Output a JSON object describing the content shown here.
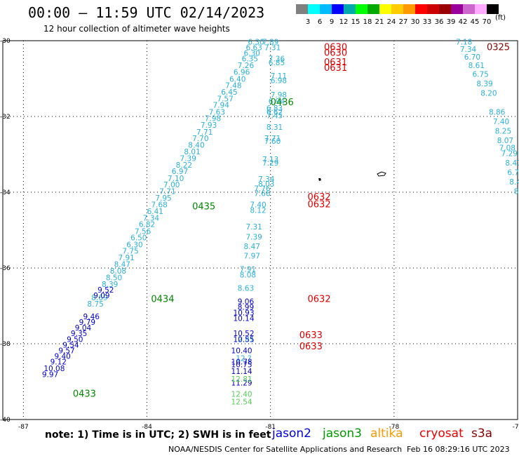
{
  "title": "00:00 – 11:59 UTC 02/14/2023",
  "subtitle": "12 hour collection of altimeter wave heights",
  "note": "note:  1) Time is in UTC;  2) SWH is in feet",
  "credit": "NOAA/NESDIS Center for Satellite Applications and Research",
  "timestamp": "Feb 16 08:29:16 UTC 2023",
  "satellites": [
    {
      "label": "jason2",
      "color": "#0000dd"
    },
    {
      "label": "jason3",
      "color": "#009900"
    },
    {
      "label": "altika",
      "color": "#ff9900"
    },
    {
      "label": "cryosat",
      "color": "#ee0000"
    },
    {
      "label": "s3a",
      "color": "#880000"
    }
  ],
  "scale": {
    "colors": [
      "#808080",
      "#00ffff",
      "#00bbff",
      "#0000ff",
      "#00aaaa",
      "#00ff00",
      "#00aa00",
      "#ffff00",
      "#ffcc00",
      "#ff9900",
      "#ff0000",
      "#cc0000",
      "#990000",
      "#990099",
      "#cc66cc",
      "#ffaaff",
      "#000000"
    ],
    "ticks": [
      "3",
      "6",
      "9",
      "12",
      "15",
      "18",
      "21",
      "24",
      "27",
      "30",
      "33",
      "36",
      "39",
      "42",
      "45",
      "70"
    ],
    "unit": "(ft)"
  },
  "map": {
    "lon_range": [
      -87.5,
      -75
    ],
    "lat_range": [
      -40,
      -30
    ],
    "x_ticks": [
      "-87",
      "-84",
      "-81",
      "-78",
      "-75"
    ],
    "y_ticks": [
      "-30",
      "-32",
      "-34",
      "-36",
      "-38",
      "-40"
    ],
    "grid": "dotted"
  },
  "chart_data": {
    "type": "scatter",
    "xlabel": "",
    "ylabel": "",
    "series": [
      {
        "color": "#2ab0d8",
        "points": [
          [
            -81.35,
            -30.1,
            "6.30"
          ],
          [
            -81.4,
            -30.25,
            "6.63"
          ],
          [
            -81.45,
            -30.4,
            "6.30"
          ],
          [
            -81.5,
            -30.55,
            "6.35"
          ],
          [
            -81.6,
            -30.72,
            "7.26"
          ],
          [
            -81.7,
            -30.9,
            "6.96"
          ],
          [
            -81.8,
            -31.08,
            "6.40"
          ],
          [
            -81.9,
            -31.25,
            "7.48"
          ],
          [
            -82.0,
            -31.43,
            "6.45"
          ],
          [
            -82.1,
            -31.6,
            "7.57"
          ],
          [
            -82.2,
            -31.77,
            "7.94"
          ],
          [
            -82.3,
            -31.95,
            "7.63"
          ],
          [
            -82.4,
            -32.12,
            "7.98"
          ],
          [
            -82.5,
            -32.3,
            "7.93"
          ],
          [
            -82.6,
            -32.48,
            "7.71"
          ],
          [
            -82.7,
            -32.65,
            "7.70"
          ],
          [
            -82.8,
            -32.82,
            "8.40"
          ],
          [
            -82.9,
            -33.0,
            "8.01"
          ],
          [
            -83.0,
            -33.18,
            "7.39"
          ],
          [
            -83.1,
            -33.35,
            "8.22"
          ],
          [
            -83.2,
            -33.52,
            "6.97"
          ],
          [
            -83.3,
            -33.7,
            "7.10"
          ],
          [
            -83.4,
            -33.87,
            "7.00"
          ],
          [
            -83.5,
            -34.05,
            "7.71"
          ],
          [
            -83.6,
            -34.22,
            "7.95"
          ],
          [
            -83.7,
            -34.4,
            "7.68"
          ],
          [
            -83.8,
            -34.57,
            "6.41"
          ],
          [
            -83.9,
            -34.75,
            "7.34"
          ],
          [
            -84.0,
            -34.92,
            "6.82"
          ],
          [
            -84.1,
            -35.1,
            "7.56"
          ],
          [
            -84.2,
            -35.27,
            "6.50"
          ],
          [
            -84.3,
            -35.45,
            "6.30"
          ],
          [
            -84.4,
            -35.62,
            "7.75"
          ],
          [
            -84.5,
            -35.8,
            "7.91"
          ],
          [
            -84.6,
            -35.97,
            "8.47"
          ],
          [
            -84.7,
            -36.15,
            "8.08"
          ],
          [
            -84.8,
            -36.32,
            "8.50"
          ],
          [
            -84.9,
            -36.5,
            "8.39"
          ],
          [
            -85.15,
            -36.85,
            "8.69"
          ],
          [
            -85.25,
            -37.02,
            "8.75"
          ],
          [
            -81.0,
            -30.1,
            "7.89"
          ],
          [
            -80.95,
            -30.25,
            "7.31"
          ],
          [
            -80.85,
            -30.55,
            "7.36"
          ],
          [
            -80.85,
            -30.65,
            "6.85"
          ],
          [
            -80.8,
            -31.0,
            "7.11"
          ],
          [
            -80.8,
            -31.12,
            "6.98"
          ],
          [
            -80.8,
            -31.5,
            "7.98"
          ],
          [
            -80.85,
            -31.67,
            "6.94"
          ],
          [
            -80.9,
            -31.85,
            "6.83"
          ],
          [
            -80.9,
            -31.95,
            "6.62"
          ],
          [
            -80.9,
            -32.05,
            "7.45"
          ],
          [
            -80.9,
            -32.35,
            "8.31"
          ],
          [
            -80.95,
            -32.65,
            "7.71"
          ],
          [
            -80.95,
            -32.72,
            "7.60"
          ],
          [
            -81.0,
            -33.2,
            "7.13"
          ],
          [
            -81.0,
            -33.3,
            "7.29"
          ],
          [
            -81.1,
            -33.72,
            "7.34"
          ],
          [
            -81.1,
            -33.85,
            "8.03"
          ],
          [
            -81.2,
            -33.97,
            "7.76"
          ],
          [
            -81.2,
            -34.1,
            "7.66"
          ],
          [
            -81.3,
            -34.4,
            "7.40"
          ],
          [
            -81.3,
            -34.55,
            "8.12"
          ],
          [
            -81.4,
            -34.98,
            "7.31"
          ],
          [
            -81.4,
            -35.25,
            "7.39"
          ],
          [
            -81.45,
            -35.5,
            "8.47"
          ],
          [
            -81.45,
            -35.75,
            "7.97"
          ],
          [
            -81.55,
            -36.1,
            "7.91"
          ],
          [
            -81.55,
            -36.25,
            "8.08"
          ],
          [
            -81.6,
            -36.6,
            "8.63"
          ],
          [
            -81.65,
            -37.95,
            "12.81"
          ],
          [
            -81.65,
            -38.45,
            "12.?"
          ],
          [
            -76.3,
            -30.1,
            "7.18"
          ],
          [
            -76.2,
            -30.3,
            "7.34"
          ],
          [
            -76.1,
            -30.5,
            "6.70"
          ],
          [
            -76.0,
            -30.72,
            "8.61"
          ],
          [
            -75.9,
            -30.95,
            "6.75"
          ],
          [
            -75.8,
            -31.2,
            "8.39"
          ],
          [
            -75.7,
            -31.45,
            "8.20"
          ],
          [
            -75.5,
            -31.95,
            "8.86"
          ],
          [
            -75.4,
            -32.2,
            "7.40"
          ],
          [
            -75.35,
            -32.45,
            "8.25"
          ],
          [
            -75.3,
            -32.7,
            "8.07"
          ],
          [
            -75.25,
            -32.9,
            "7.08"
          ],
          [
            -75.2,
            -33.05,
            "7.29"
          ],
          [
            -75.1,
            -33.3,
            "8.47"
          ],
          [
            -75.05,
            -33.55,
            "6.75"
          ],
          [
            -75.0,
            -33.8,
            "8.40"
          ],
          [
            -74.95,
            -34.05,
            "8.7"
          ],
          [
            -74.9,
            -34.3,
            "7.?"
          ],
          [
            -74.85,
            -34.55,
            "6.?"
          ]
        ]
      },
      {
        "color": "#0000cc",
        "points": [
          [
            -85.0,
            -36.65,
            "9.52"
          ],
          [
            -85.1,
            -36.8,
            "9.09"
          ],
          [
            -85.35,
            -37.35,
            "9.46"
          ],
          [
            -85.45,
            -37.5,
            "9.79"
          ],
          [
            -85.55,
            -37.65,
            "9.04"
          ],
          [
            -85.65,
            -37.8,
            "9.35"
          ],
          [
            -85.75,
            -37.95,
            "9.50"
          ],
          [
            -85.85,
            -38.1,
            "9.54"
          ],
          [
            -85.95,
            -38.25,
            "9.57"
          ],
          [
            -86.05,
            -38.4,
            "9.40"
          ],
          [
            -86.15,
            -38.55,
            "9.12"
          ],
          [
            -86.25,
            -38.72,
            "10.08"
          ],
          [
            -86.35,
            -38.88,
            "9.97"
          ],
          [
            -81.6,
            -36.95,
            "9.06"
          ],
          [
            -81.6,
            -37.1,
            "8.99"
          ],
          [
            -81.65,
            -37.25,
            "10.93"
          ],
          [
            -81.65,
            -37.4,
            "10.14"
          ],
          [
            -81.65,
            -37.8,
            "10.52"
          ],
          [
            -81.65,
            -37.95,
            "10.55"
          ],
          [
            -81.7,
            -38.25,
            "10.40"
          ],
          [
            -81.7,
            -38.55,
            "10.78"
          ],
          [
            -81.7,
            -38.62,
            "10.75"
          ],
          [
            -81.7,
            -38.8,
            "11.14"
          ],
          [
            -81.7,
            -39.1,
            "11.29"
          ]
        ]
      },
      {
        "color": "#55cc55",
        "points": [
          [
            -81.7,
            -39.0,
            "12.81"
          ],
          [
            -81.7,
            -39.4,
            "12.40"
          ],
          [
            -81.7,
            -39.6,
            "12.54"
          ]
        ]
      }
    ],
    "time_labels": [
      {
        "lon": -81.0,
        "lat": -31.7,
        "text": "0436",
        "color": "#008800"
      },
      {
        "lon": -82.9,
        "lat": -34.45,
        "text": "0435",
        "color": "#008800"
      },
      {
        "lon": -83.9,
        "lat": -36.9,
        "text": "0434",
        "color": "#008800"
      },
      {
        "lon": -85.8,
        "lat": -39.4,
        "text": "0433",
        "color": "#008800"
      },
      {
        "lon": -79.7,
        "lat": -30.25,
        "text": "0630",
        "color": "#dd0000"
      },
      {
        "lon": -79.7,
        "lat": -30.4,
        "text": "0630",
        "color": "#dd0000"
      },
      {
        "lon": -79.7,
        "lat": -30.65,
        "text": "0631",
        "color": "#dd0000"
      },
      {
        "lon": -79.7,
        "lat": -30.8,
        "text": "0631",
        "color": "#dd0000"
      },
      {
        "lon": -80.1,
        "lat": -34.2,
        "text": "0632",
        "color": "#dd0000"
      },
      {
        "lon": -80.1,
        "lat": -34.4,
        "text": "0632",
        "color": "#dd0000"
      },
      {
        "lon": -80.1,
        "lat": -36.9,
        "text": "0632",
        "color": "#dd0000"
      },
      {
        "lon": -80.3,
        "lat": -37.85,
        "text": "0633",
        "color": "#dd0000"
      },
      {
        "lon": -80.3,
        "lat": -38.15,
        "text": "0633",
        "color": "#dd0000"
      },
      {
        "lon": -75.75,
        "lat": -30.25,
        "text": "0325",
        "color": "#880000"
      }
    ]
  }
}
